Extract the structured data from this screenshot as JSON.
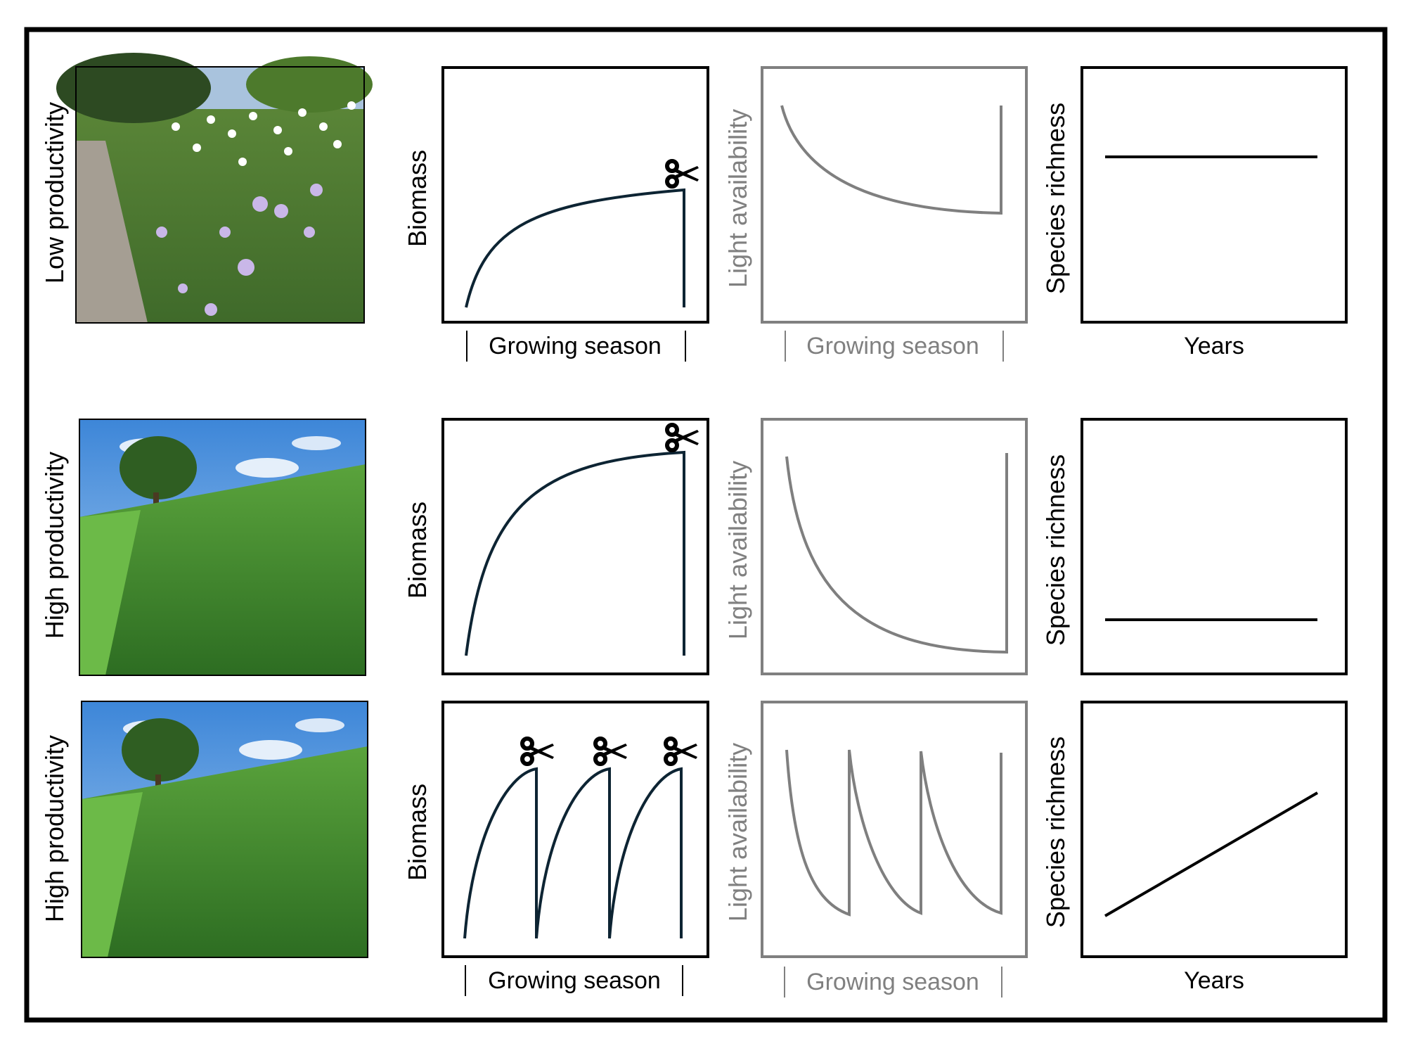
{
  "labels": {
    "low_productivity": "Low productivity",
    "high_productivity": "High productivity",
    "biomass": "Biomass",
    "light_availability": "Light availability",
    "species_richness": "Species richness",
    "growing_season": "Growing season",
    "years": "Years"
  },
  "colors": {
    "frame": "#000000",
    "biomass_curve": "#0d2433",
    "light_panel": "#808080",
    "light_curve": "#7f7f7f",
    "richness_line": "#000000",
    "sky": "#6fa9e6",
    "grass": "#3c8a2c",
    "flower": "#c9b7e8"
  },
  "icons": {
    "cut_marker": "scissors-icon"
  },
  "rows": [
    {
      "productivity": "Low productivity",
      "photo": "flowering-meadow-photo",
      "cuts_per_season": 1,
      "biomass_trend": "slow rise, low plateau",
      "light_trend": "moderate decline",
      "richness_trend": "high, constant"
    },
    {
      "productivity": "High productivity",
      "photo": "tall-grass-field-photo",
      "cuts_per_season": 1,
      "biomass_trend": "fast rise, high plateau",
      "light_trend": "steep decline",
      "richness_trend": "low, constant"
    },
    {
      "productivity": "High productivity",
      "photo": "tall-grass-field-photo",
      "cuts_per_season": 3,
      "biomass_trend": "three rise-and-cut cycles",
      "light_trend": "three decline-and-recover cycles",
      "richness_trend": "increasing"
    }
  ]
}
